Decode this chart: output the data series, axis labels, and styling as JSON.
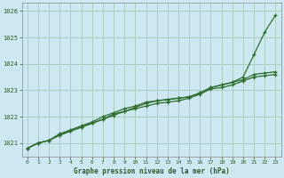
{
  "title": "Graphe pression niveau de la mer (hPa)",
  "bg_color": "#cde8f0",
  "grid_color": "#a8cfc0",
  "line_color": "#2d6e2d",
  "text_color": "#2d5a2d",
  "xlim": [
    -0.5,
    23.5
  ],
  "ylim": [
    1020.5,
    1026.3
  ],
  "yticks": [
    1021,
    1022,
    1023,
    1024,
    1025,
    1026
  ],
  "ytick_labels": [
    "1021",
    "1022",
    "1023",
    "1024",
    "1025",
    "1026"
  ],
  "xticks": [
    0,
    1,
    2,
    3,
    4,
    5,
    6,
    7,
    8,
    9,
    10,
    11,
    12,
    13,
    14,
    15,
    16,
    17,
    18,
    19,
    20,
    21,
    22,
    23
  ],
  "series1_x": [
    0,
    1,
    2,
    3,
    4,
    5,
    6,
    7,
    8,
    9,
    10,
    11,
    12,
    13,
    14,
    15,
    16,
    17,
    18,
    19,
    20,
    21,
    22,
    23
  ],
  "series1_y": [
    1020.8,
    1021.0,
    1021.1,
    1021.3,
    1021.45,
    1021.6,
    1021.75,
    1021.9,
    1022.05,
    1022.2,
    1022.3,
    1022.4,
    1022.5,
    1022.55,
    1022.6,
    1022.7,
    1022.85,
    1023.05,
    1023.1,
    1023.2,
    1023.35,
    1023.5,
    1023.55,
    1023.6
  ],
  "series2_x": [
    0,
    1,
    2,
    3,
    4,
    5,
    6,
    7,
    8,
    9,
    10,
    11,
    12,
    13,
    14,
    15,
    16,
    17,
    18,
    19,
    20,
    21,
    22,
    23
  ],
  "series2_y": [
    1020.8,
    1021.0,
    1021.1,
    1021.35,
    1021.5,
    1021.65,
    1021.8,
    1022.0,
    1022.15,
    1022.3,
    1022.4,
    1022.55,
    1022.6,
    1022.65,
    1022.7,
    1022.75,
    1022.9,
    1023.1,
    1023.2,
    1023.3,
    1023.4,
    1023.6,
    1023.65,
    1023.7
  ],
  "series3_x": [
    0,
    1,
    2,
    3,
    4,
    5,
    6,
    7,
    8,
    9,
    10,
    11,
    12,
    13,
    14,
    15,
    16,
    17,
    18,
    19,
    20,
    21,
    22,
    23
  ],
  "series3_y": [
    1020.8,
    1021.0,
    1021.1,
    1021.3,
    1021.45,
    1021.6,
    1021.75,
    1021.9,
    1022.1,
    1022.2,
    1022.35,
    1022.5,
    1022.6,
    1022.65,
    1022.7,
    1022.75,
    1022.9,
    1023.1,
    1023.2,
    1023.3,
    1023.5,
    1024.35,
    1025.2,
    1025.85
  ]
}
